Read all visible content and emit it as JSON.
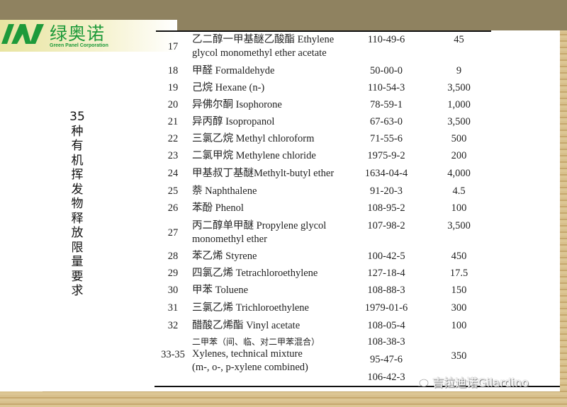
{
  "logo": {
    "name_cn": "绿奥诺",
    "name_en": "Green Panel Corporation",
    "color": "#1d9a3a"
  },
  "title_chars": [
    "35",
    "种",
    "有",
    "机",
    "挥",
    "发",
    "物",
    "释",
    "放",
    "限",
    "量",
    "要",
    "求"
  ],
  "rows": [
    {
      "no": "17",
      "name": [
        "乙二醇一甲基醚乙酸酯 Ethylene",
        "glycol monomethyl ether acetate"
      ],
      "cas": [
        "110-49-6"
      ],
      "limit": "45"
    },
    {
      "no": "18",
      "name": [
        "甲醛 Formaldehyde"
      ],
      "cas": [
        "50-00-0"
      ],
      "limit": "9"
    },
    {
      "no": "19",
      "name": [
        "己烷 Hexane (n-)"
      ],
      "cas": [
        "110-54-3"
      ],
      "limit": "3,500"
    },
    {
      "no": "20",
      "name": [
        "异佛尔酮 Isophorone"
      ],
      "cas": [
        "78-59-1"
      ],
      "limit": "1,000"
    },
    {
      "no": "21",
      "name": [
        "异丙醇 Isopropanol"
      ],
      "cas": [
        "67-63-0"
      ],
      "limit": "3,500"
    },
    {
      "no": "22",
      "name": [
        "三氯乙烷 Methyl chloroform"
      ],
      "cas": [
        "71-55-6"
      ],
      "limit": "500"
    },
    {
      "no": "23",
      "name": [
        "二氯甲烷 Methylene chloride"
      ],
      "cas": [
        "1975-9-2"
      ],
      "limit": "200"
    },
    {
      "no": "24",
      "name": [
        "甲基叔丁基醚Methylt-butyl ether"
      ],
      "cas": [
        "1634-04-4"
      ],
      "limit": "4,000"
    },
    {
      "no": "25",
      "name": [
        "萘 Naphthalene"
      ],
      "cas": [
        "91-20-3"
      ],
      "limit": "4.5"
    },
    {
      "no": "26",
      "name": [
        "苯酚 Phenol"
      ],
      "cas": [
        "108-95-2"
      ],
      "limit": "100"
    },
    {
      "no": "27",
      "name": [
        " 丙二醇单甲醚 Propylene glycol",
        "monomethyl ether"
      ],
      "cas": [
        "107-98-2"
      ],
      "limit": "3,500"
    },
    {
      "no": "28",
      "name": [
        "苯乙烯 Styrene"
      ],
      "cas": [
        "100-42-5"
      ],
      "limit": "450"
    },
    {
      "no": "29",
      "name": [
        "四氯乙烯 Tetrachloroethylene"
      ],
      "cas": [
        "127-18-4"
      ],
      "limit": "17.5"
    },
    {
      "no": "30",
      "name": [
        "甲苯 Toluene"
      ],
      "cas": [
        "108-88-3"
      ],
      "limit": "150"
    },
    {
      "no": "31",
      "name": [
        " 三氯乙烯 Trichloroethylene"
      ],
      "cas": [
        "1979-01-6"
      ],
      "limit": "300"
    },
    {
      "no": "32",
      "name": [
        "醋酸乙烯酯 Vinyl acetate"
      ],
      "cas": [
        "108-05-4"
      ],
      "limit": "100"
    },
    {
      "no": "33-35",
      "name": [
        "二甲苯（间、临、对二甲苯混合）",
        "Xylenes, technical mixture",
        "(m-, o-, p-xylene combined)"
      ],
      "cas": [
        "108-38-3",
        "95-47-6",
        "106-42-3"
      ],
      "limit": "350"
    }
  ],
  "watermark": {
    "text": "吉拉迪诺Gilardino",
    "icon": "wechat-icon"
  }
}
